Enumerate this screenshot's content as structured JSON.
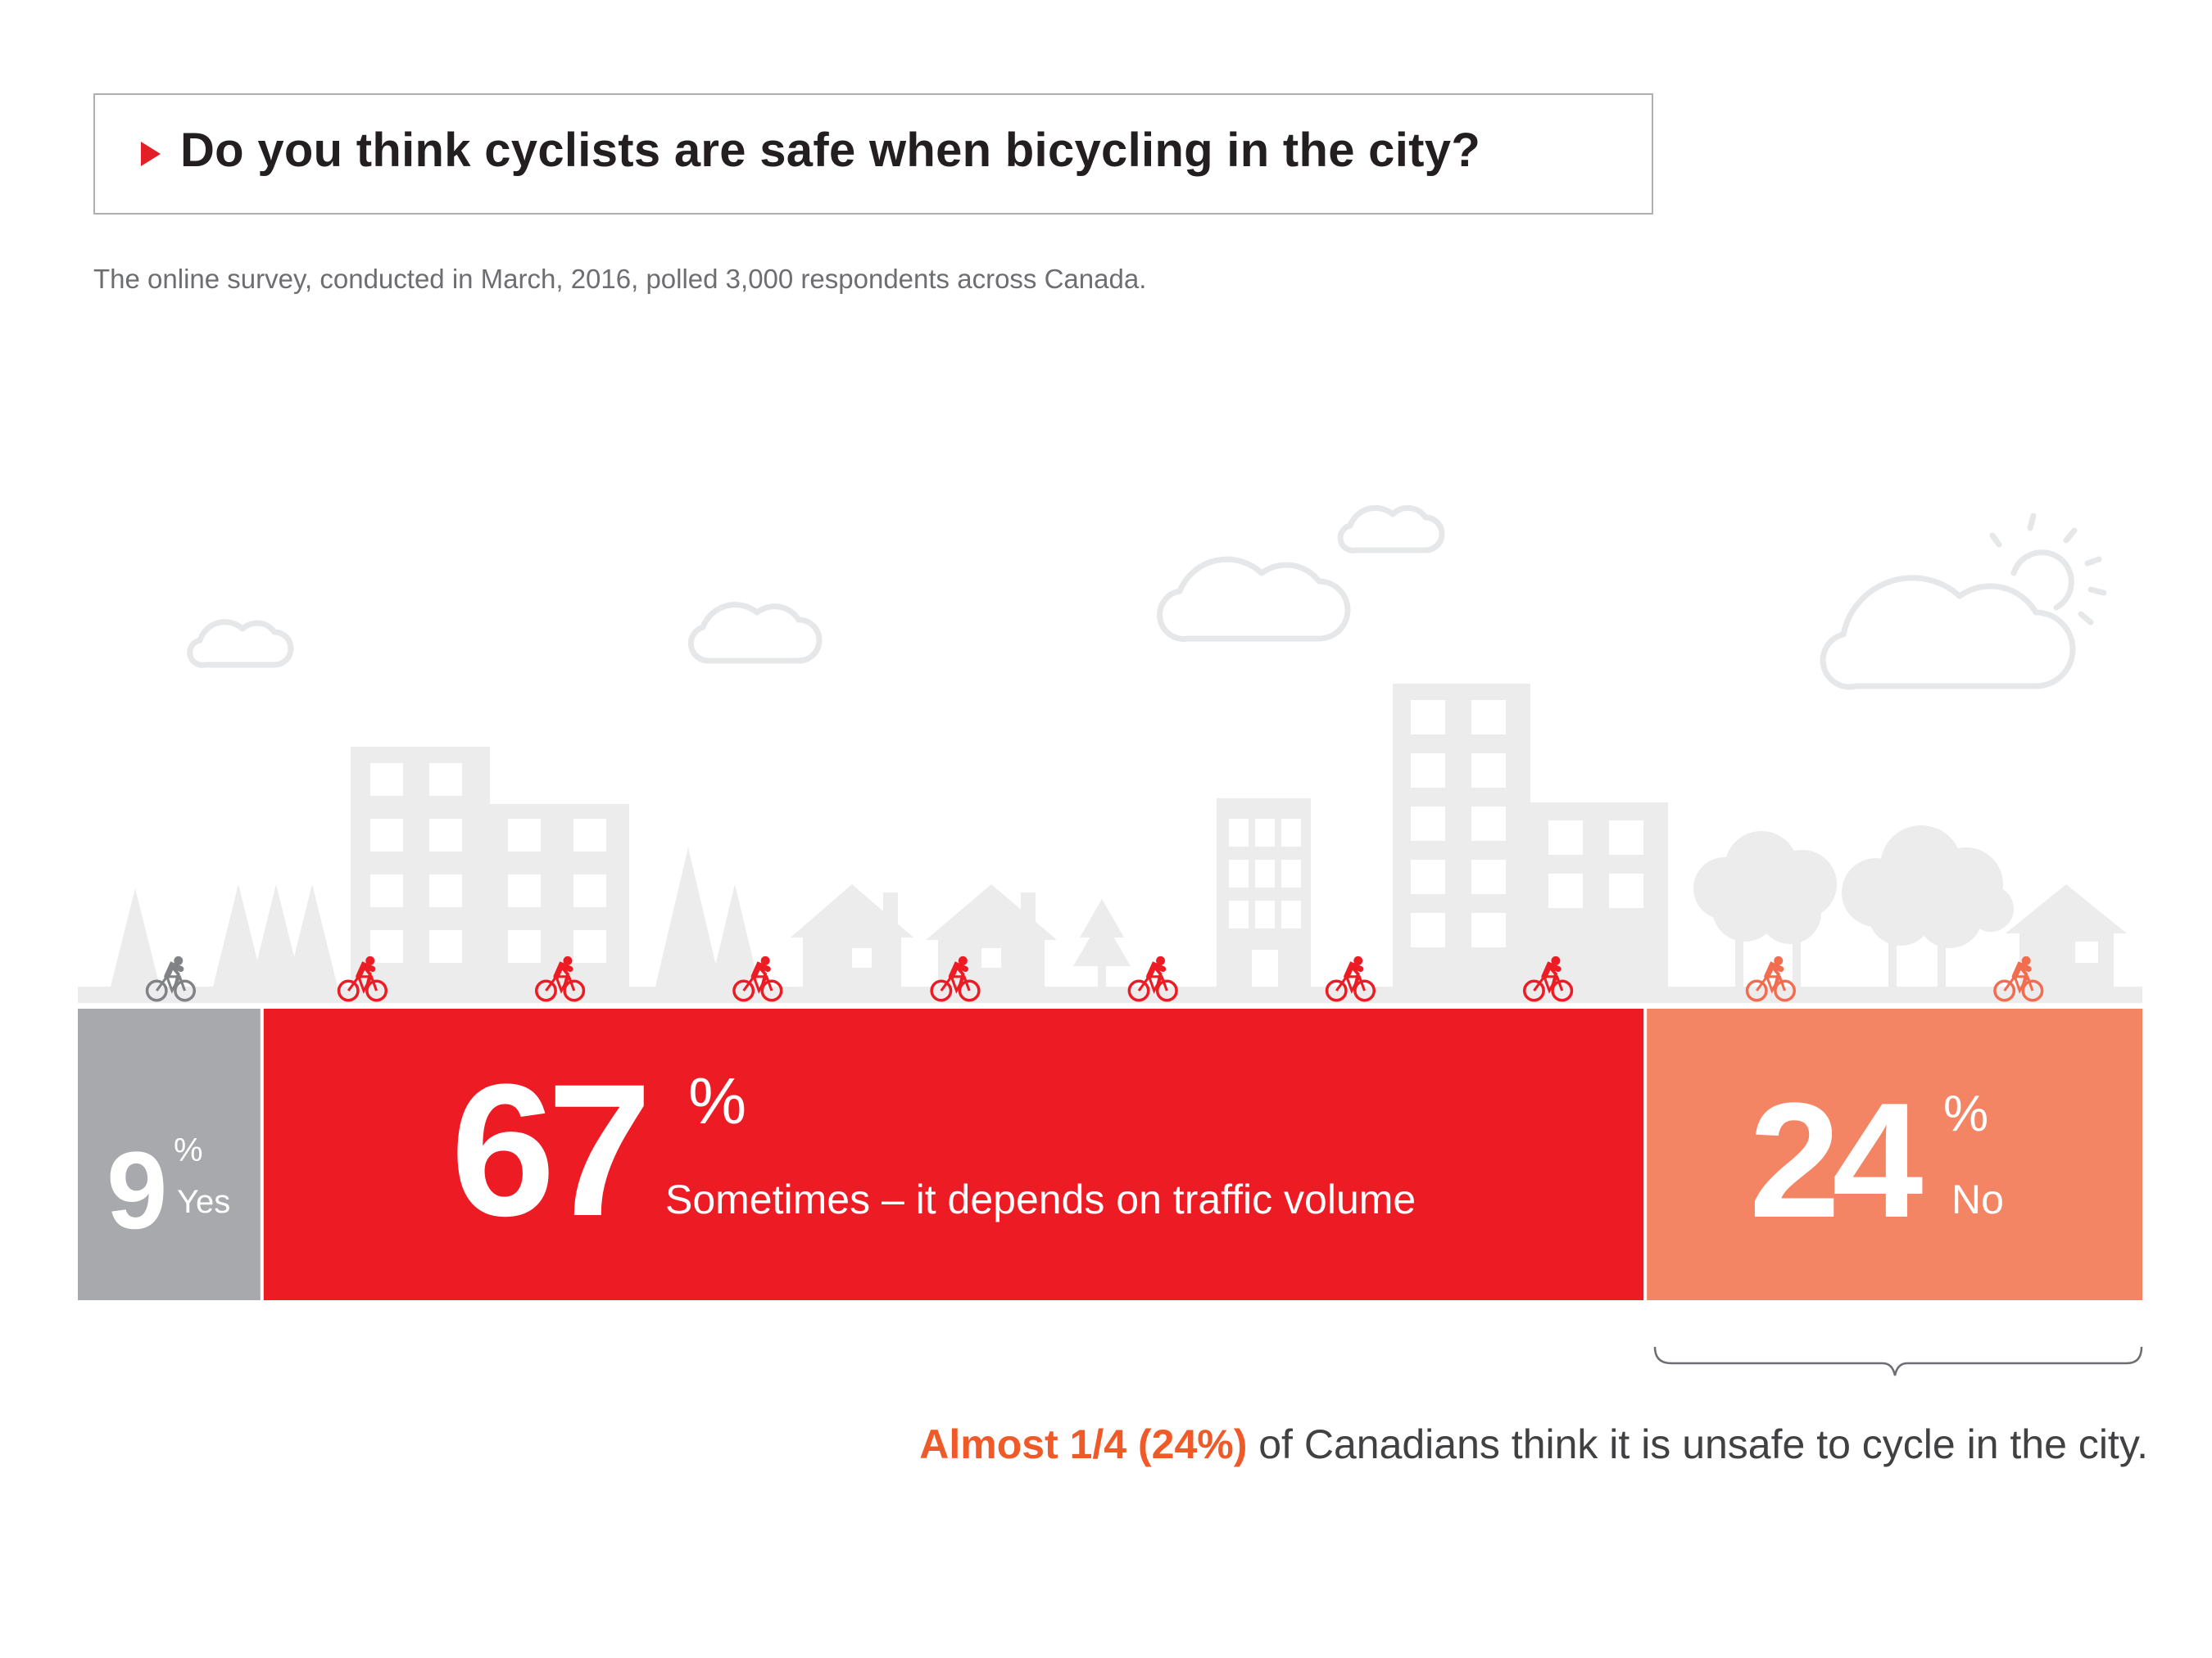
{
  "title": "Do you think cyclists are safe when bicycling in the city?",
  "subtitle": "The online survey, conducted in March, 2016, polled 3,000 respondents across Canada.",
  "colors": {
    "accent": "#e41e26",
    "yes": "#a7a9ac",
    "sometimes": "#ed1c24",
    "no": "#f38464",
    "scenery": "#ececed",
    "cloud_stroke": "#e6e7e8"
  },
  "icons": [
    "cyclist-icon",
    "cloud-icon",
    "sun-icon",
    "building-icon",
    "house-icon",
    "tree-icon"
  ],
  "chart_data": {
    "type": "bar",
    "stacked": true,
    "orientation": "horizontal",
    "categories": [
      "Yes",
      "Sometimes – it depends on traffic volume",
      "No"
    ],
    "values": [
      9,
      67,
      24
    ],
    "unit": "%",
    "segments": [
      {
        "value": "9",
        "unit": "%",
        "label": "Yes",
        "color": "#a7a9ac",
        "cyclist_count": 1
      },
      {
        "value": "67",
        "unit": "%",
        "label": "Sometimes – it depends on traffic volume",
        "color": "#ed1c24",
        "cyclist_count": 7
      },
      {
        "value": "24",
        "unit": "%",
        "label": "No",
        "color": "#f38464",
        "cyclist_count": 2
      }
    ]
  },
  "footnote": {
    "highlight": "Almost 1/4 (24%)",
    "rest": " of Canadians think it is unsafe to cycle in the city."
  }
}
